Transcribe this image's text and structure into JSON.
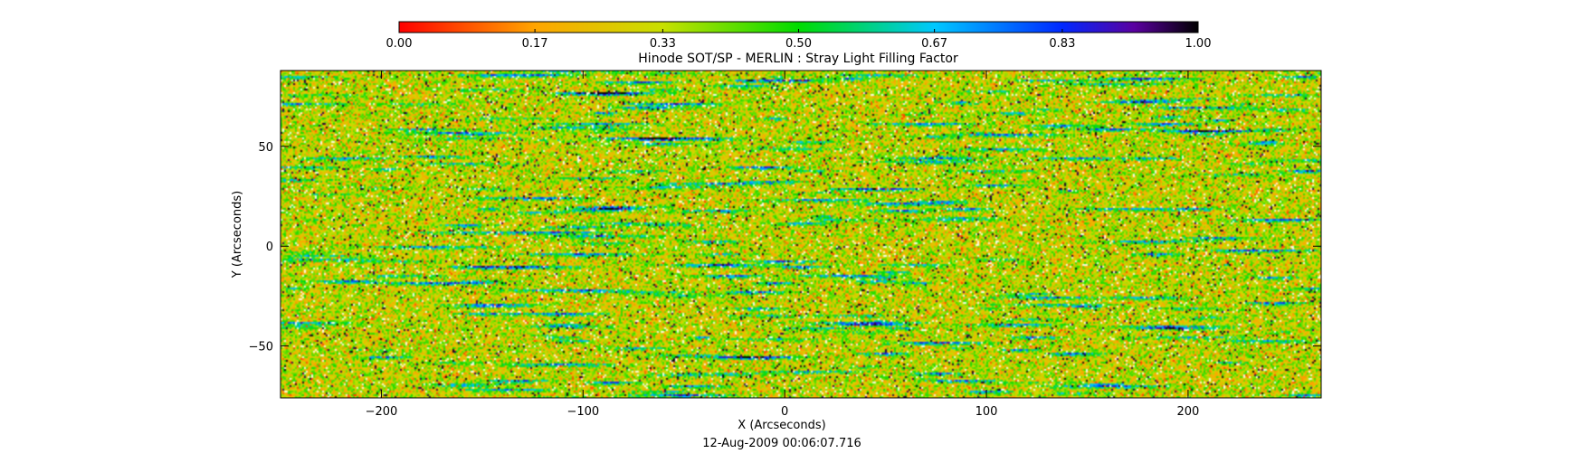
{
  "chart_data": {
    "type": "heatmap",
    "title": "Hinode SOT/SP - MERLIN : Stray Light Filling Factor",
    "xlabel": "X (Arcseconds)",
    "ylabel": "Y (Arcseconds)",
    "date_label": "12-Aug-2009 00:06:07.716",
    "xlim": [
      -250,
      266
    ],
    "ylim": [
      -76,
      88
    ],
    "x_ticks": [
      -200,
      -100,
      0,
      100,
      200
    ],
    "x_tick_labels": [
      "-200",
      "-100",
      "0",
      "100",
      "200"
    ],
    "y_ticks": [
      -50,
      0,
      50
    ],
    "y_tick_labels": [
      "-50",
      "0",
      "50"
    ],
    "colorbar": {
      "range": [
        0,
        1
      ],
      "ticks": [
        0.0,
        0.17,
        0.33,
        0.5,
        0.67,
        0.83,
        1.0
      ],
      "tick_labels": [
        "0.00",
        "0.17",
        "0.33",
        "0.50",
        "0.67",
        "0.83",
        "1.00"
      ],
      "colors": [
        {
          "stop": 0.0,
          "color": "#ff0000"
        },
        {
          "stop": 0.17,
          "color": "#ffa500"
        },
        {
          "stop": 0.33,
          "color": "#c8e000"
        },
        {
          "stop": 0.5,
          "color": "#00dc00"
        },
        {
          "stop": 0.67,
          "color": "#00c8ff"
        },
        {
          "stop": 0.83,
          "color": "#0028ff"
        },
        {
          "stop": 0.92,
          "color": "#5a00a0"
        },
        {
          "stop": 1.0,
          "color": "#000000"
        }
      ]
    },
    "field_description": "dense noisy map dominated by values ~0.25-0.45 with streaks of ~0.6-0.85",
    "grid": false
  }
}
